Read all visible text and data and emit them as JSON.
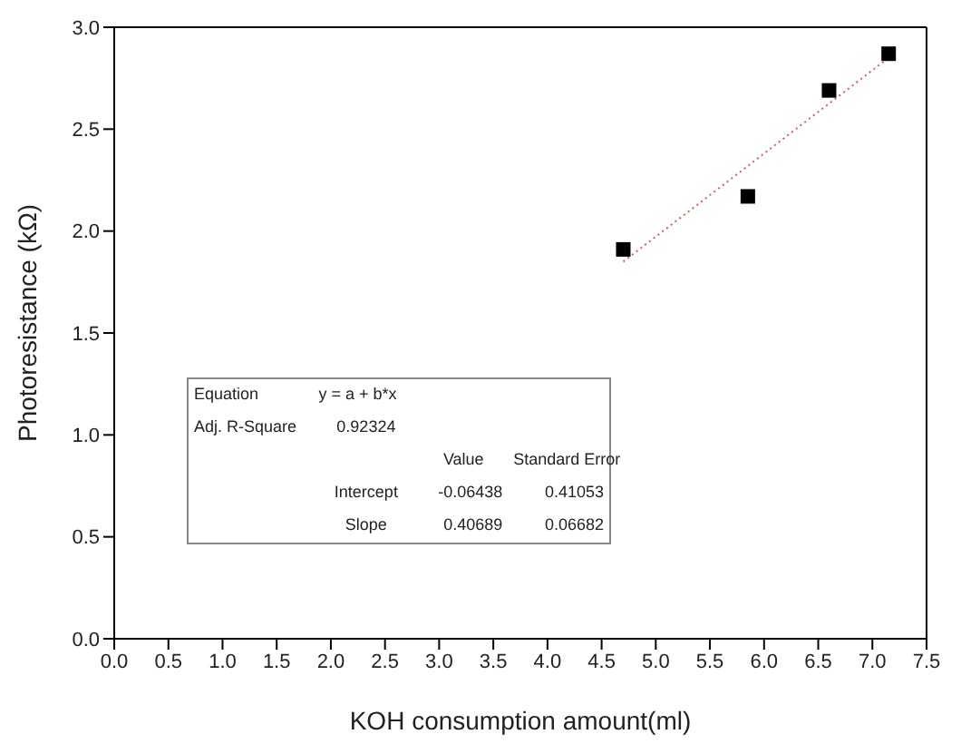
{
  "chart_data": {
    "type": "scatter",
    "xlabel": "KOH consumption amount(ml)",
    "ylabel": "Photoresistance (kΩ)",
    "series": [
      {
        "color": "#000000",
        "marker": "square",
        "x": [
          4.7,
          5.85,
          6.6,
          7.15
        ],
        "values": [
          1.91,
          2.17,
          2.69,
          2.87
        ]
      },
      {
        "type": "line",
        "color": "#d06060",
        "line_style": "dotted",
        "marker": "none",
        "x": [
          4.7,
          7.15
        ],
        "values": [
          1.85,
          2.85
        ]
      }
    ],
    "xlim": [
      0,
      7.5
    ],
    "xticks": [
      {
        "value": 0,
        "label": "0.0"
      },
      0.5,
      {
        "value": 1,
        "label": "1.0"
      },
      1.5,
      {
        "value": 2,
        "label": "2.0"
      },
      2.5,
      {
        "value": 3,
        "label": "3.0"
      },
      3.5,
      {
        "value": 4,
        "label": "4.0"
      },
      4.5,
      {
        "value": 5,
        "label": "5.0"
      },
      5.5,
      {
        "value": 6,
        "label": "6.0"
      },
      6.5,
      {
        "value": 7,
        "label": "7.0"
      },
      7.5
    ],
    "ylim": [
      0,
      3
    ],
    "yticks": [
      {
        "value": 0,
        "label": "0.0"
      },
      0.5,
      {
        "value": 1,
        "label": "1.0"
      },
      1.5,
      {
        "value": 2,
        "label": "2.0"
      },
      2.5,
      {
        "value": 3,
        "label": "3.0"
      }
    ],
    "annotations": [
      "Equation",
      "y = a + b*x",
      "Adj. R-Square",
      "0.92324",
      "Value",
      "Standard Error",
      "Intercept",
      "-0.06438",
      "0.41053",
      "Slope",
      "0.40689",
      "0.06682"
    ]
  }
}
